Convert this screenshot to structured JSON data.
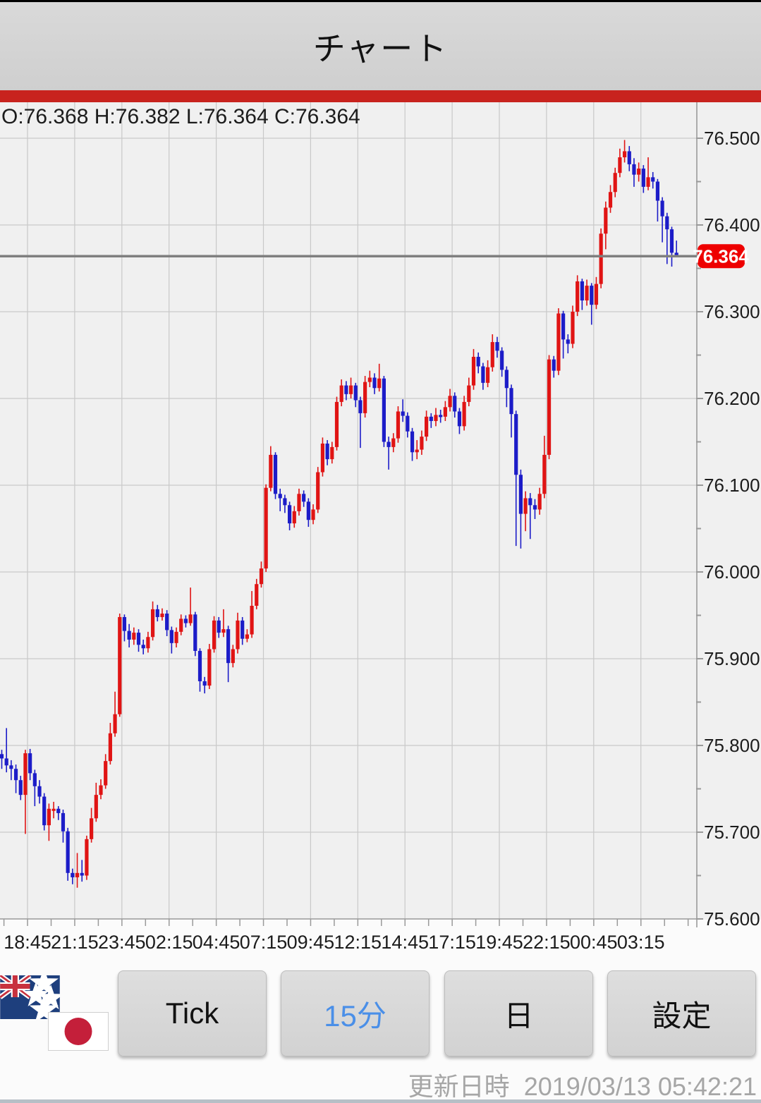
{
  "header": {
    "title": "チャート",
    "accent_color": "#c8231e"
  },
  "price_readout": {
    "display": "O:76.368 H:76.382 L:76.364 C:76.364",
    "open": "76.368",
    "high": "76.382",
    "low": "76.364",
    "close": "76.364"
  },
  "chart_data": {
    "type": "candlestick",
    "timeframe_minutes": 15,
    "current_price": "76.364",
    "y_axis": {
      "min": 75.6,
      "max": 76.5,
      "tick_interval": 0.1,
      "labels": [
        "76.500",
        "76.400",
        "76.300",
        "76.200",
        "76.100",
        "76.000",
        "75.900",
        "75.800",
        "75.700",
        "75.600"
      ]
    },
    "x_axis": {
      "labels": [
        "18:45",
        "21:15",
        "23:45",
        "02:15",
        "04:45",
        "07:15",
        "09:45",
        "12:15",
        "14:45",
        "17:15",
        "19:45",
        "22:15",
        "00:45",
        "03:15"
      ]
    },
    "colors": {
      "up": "#e01414",
      "down": "#1c1cc8",
      "grid": "#c9c9c9",
      "axis": "#9a9a9a",
      "plot_bg": "#f0f0f0",
      "below_axis_bg": "#fbfbfb",
      "current_price_line": "#7f7f7f",
      "price_flag_bg": "#ee0000",
      "price_flag_text": "#ffffff",
      "label_text": "#1c1c1c"
    },
    "candles": [
      [
        75.79,
        75.795,
        75.773,
        75.785
      ],
      [
        75.785,
        75.82,
        75.769,
        75.777
      ],
      [
        75.777,
        75.783,
        75.76,
        75.773
      ],
      [
        75.773,
        75.778,
        75.745,
        75.76
      ],
      [
        75.76,
        75.765,
        75.737,
        75.743
      ],
      [
        75.743,
        75.795,
        75.698,
        75.791
      ],
      [
        75.791,
        75.796,
        75.76,
        75.768
      ],
      [
        75.768,
        75.772,
        75.73,
        75.753
      ],
      [
        75.753,
        75.76,
        75.733,
        75.741
      ],
      [
        75.741,
        75.745,
        75.702,
        75.708
      ],
      [
        75.708,
        75.733,
        75.69,
        75.727
      ],
      [
        75.727,
        75.735,
        75.716,
        75.727
      ],
      [
        75.727,
        75.73,
        75.714,
        75.722
      ],
      [
        75.722,
        75.726,
        75.688,
        75.701
      ],
      [
        75.701,
        75.705,
        75.644,
        75.653
      ],
      [
        75.653,
        75.658,
        75.64,
        75.648
      ],
      [
        75.648,
        75.676,
        75.636,
        75.653
      ],
      [
        75.653,
        75.668,
        75.643,
        75.65
      ],
      [
        75.65,
        75.696,
        75.645,
        75.692
      ],
      [
        75.692,
        75.728,
        75.688,
        75.716
      ],
      [
        75.716,
        75.757,
        75.712,
        75.743
      ],
      [
        75.743,
        75.761,
        75.738,
        75.754
      ],
      [
        75.754,
        75.79,
        75.75,
        75.782
      ],
      [
        75.782,
        75.826,
        75.778,
        75.814
      ],
      [
        75.814,
        75.862,
        75.81,
        75.836
      ],
      [
        75.836,
        75.952,
        75.833,
        75.948
      ],
      [
        75.948,
        75.951,
        75.92,
        75.932
      ],
      [
        75.932,
        75.94,
        75.913,
        75.922
      ],
      [
        75.922,
        75.936,
        75.916,
        75.93
      ],
      [
        75.93,
        75.934,
        75.908,
        75.916
      ],
      [
        75.916,
        75.922,
        75.905,
        75.912
      ],
      [
        75.912,
        75.931,
        75.907,
        75.925
      ],
      [
        75.925,
        75.966,
        75.921,
        75.957
      ],
      [
        75.957,
        75.962,
        75.943,
        75.948
      ],
      [
        75.948,
        75.958,
        75.944,
        75.952
      ],
      [
        75.952,
        75.956,
        75.926,
        75.933
      ],
      [
        75.933,
        75.937,
        75.906,
        75.918
      ],
      [
        75.918,
        75.936,
        75.913,
        75.931
      ],
      [
        75.931,
        75.951,
        75.927,
        75.946
      ],
      [
        75.946,
        75.95,
        75.936,
        75.941
      ],
      [
        75.941,
        75.982,
        75.938,
        75.951
      ],
      [
        75.951,
        75.954,
        75.903,
        75.909
      ],
      [
        75.909,
        75.912,
        75.862,
        75.874
      ],
      [
        75.874,
        75.879,
        75.86,
        75.869
      ],
      [
        75.869,
        75.917,
        75.865,
        75.911
      ],
      [
        75.911,
        75.949,
        75.907,
        75.944
      ],
      [
        75.944,
        75.948,
        75.924,
        75.93
      ],
      [
        75.93,
        75.957,
        75.925,
        75.934
      ],
      [
        75.934,
        75.938,
        75.873,
        75.895
      ],
      [
        75.895,
        75.916,
        75.89,
        75.911
      ],
      [
        75.911,
        75.953,
        75.906,
        75.944
      ],
      [
        75.944,
        75.948,
        75.916,
        75.923
      ],
      [
        75.923,
        75.934,
        75.919,
        75.928
      ],
      [
        75.928,
        75.978,
        75.924,
        75.961
      ],
      [
        75.961,
        75.992,
        75.957,
        75.986
      ],
      [
        75.986,
        76.012,
        75.982,
        76.004
      ],
      [
        76.004,
        76.101,
        76.0,
        76.097
      ],
      [
        76.097,
        76.145,
        76.093,
        76.135
      ],
      [
        76.135,
        76.138,
        76.084,
        76.09
      ],
      [
        76.09,
        76.096,
        76.07,
        76.085
      ],
      [
        76.085,
        76.089,
        76.068,
        76.077
      ],
      [
        76.077,
        76.081,
        76.048,
        76.056
      ],
      [
        76.056,
        76.076,
        76.051,
        76.07
      ],
      [
        76.07,
        76.096,
        76.065,
        76.09
      ],
      [
        76.09,
        76.094,
        76.075,
        76.081
      ],
      [
        76.081,
        76.085,
        76.052,
        76.06
      ],
      [
        76.06,
        76.078,
        76.055,
        76.072
      ],
      [
        76.072,
        76.121,
        76.068,
        76.115
      ],
      [
        76.115,
        76.155,
        76.11,
        76.148
      ],
      [
        76.148,
        76.152,
        76.123,
        76.13
      ],
      [
        76.13,
        76.15,
        76.125,
        76.144
      ],
      [
        76.144,
        76.202,
        76.14,
        76.196
      ],
      [
        76.196,
        76.222,
        76.191,
        76.215
      ],
      [
        76.215,
        76.22,
        76.198,
        76.205
      ],
      [
        76.205,
        76.224,
        76.2,
        76.215
      ],
      [
        76.215,
        76.218,
        76.19,
        76.198
      ],
      [
        76.198,
        76.202,
        76.143,
        76.183
      ],
      [
        76.183,
        76.226,
        76.178,
        76.219
      ],
      [
        76.219,
        76.232,
        76.213,
        76.224
      ],
      [
        76.224,
        76.229,
        76.205,
        76.212
      ],
      [
        76.212,
        76.24,
        76.208,
        76.223
      ],
      [
        76.223,
        76.226,
        76.144,
        76.15
      ],
      [
        76.15,
        76.156,
        76.118,
        76.144
      ],
      [
        76.144,
        76.16,
        76.138,
        76.154
      ],
      [
        76.154,
        76.191,
        76.149,
        76.185
      ],
      [
        76.185,
        76.199,
        76.173,
        76.18
      ],
      [
        76.18,
        76.184,
        76.155,
        76.162
      ],
      [
        76.162,
        76.166,
        76.128,
        76.138
      ],
      [
        76.138,
        76.152,
        76.13,
        76.141
      ],
      [
        76.141,
        76.163,
        76.135,
        76.156
      ],
      [
        76.156,
        76.186,
        76.151,
        76.179
      ],
      [
        76.179,
        76.183,
        76.166,
        76.174
      ],
      [
        76.174,
        76.189,
        76.168,
        76.181
      ],
      [
        76.181,
        76.187,
        76.172,
        76.179
      ],
      [
        76.179,
        76.197,
        76.174,
        76.19
      ],
      [
        76.19,
        76.211,
        76.185,
        76.203
      ],
      [
        76.203,
        76.207,
        76.178,
        76.185
      ],
      [
        76.185,
        76.189,
        76.159,
        76.168
      ],
      [
        76.168,
        76.203,
        76.163,
        76.196
      ],
      [
        76.196,
        76.224,
        76.191,
        76.215
      ],
      [
        76.215,
        76.257,
        76.21,
        76.248
      ],
      [
        76.248,
        76.253,
        76.229,
        76.237
      ],
      [
        76.237,
        76.241,
        76.21,
        76.218
      ],
      [
        76.218,
        76.244,
        76.213,
        76.236
      ],
      [
        76.236,
        76.274,
        76.231,
        76.265
      ],
      [
        76.265,
        76.271,
        76.247,
        76.255
      ],
      [
        76.255,
        76.259,
        76.225,
        76.233
      ],
      [
        76.233,
        76.237,
        76.19,
        76.212
      ],
      [
        76.212,
        76.216,
        76.155,
        76.182
      ],
      [
        76.182,
        76.186,
        76.03,
        76.112
      ],
      [
        76.112,
        76.118,
        76.027,
        76.067
      ],
      [
        76.067,
        76.093,
        76.047,
        76.085
      ],
      [
        76.085,
        76.091,
        76.038,
        76.077
      ],
      [
        76.077,
        76.084,
        76.061,
        76.072
      ],
      [
        76.072,
        76.097,
        76.066,
        76.09
      ],
      [
        76.09,
        76.157,
        76.085,
        76.135
      ],
      [
        76.135,
        76.25,
        76.13,
        76.245
      ],
      [
        76.245,
        76.249,
        76.224,
        76.232
      ],
      [
        76.232,
        76.304,
        76.227,
        76.298
      ],
      [
        76.298,
        76.301,
        76.246,
        76.268
      ],
      [
        76.268,
        76.274,
        76.252,
        76.263
      ],
      [
        76.263,
        76.307,
        76.258,
        76.3
      ],
      [
        76.3,
        76.342,
        76.295,
        76.335
      ],
      [
        76.335,
        76.338,
        76.302,
        76.313
      ],
      [
        76.313,
        76.337,
        76.307,
        76.33
      ],
      [
        76.33,
        76.333,
        76.285,
        76.308
      ],
      [
        76.308,
        76.34,
        76.303,
        76.332
      ],
      [
        76.332,
        76.396,
        76.327,
        76.39
      ],
      [
        76.39,
        76.427,
        76.372,
        76.42
      ],
      [
        76.42,
        76.446,
        76.414,
        76.438
      ],
      [
        76.438,
        76.466,
        76.432,
        76.46
      ],
      [
        76.46,
        76.488,
        76.455,
        76.478
      ],
      [
        76.478,
        76.498,
        76.472,
        76.485
      ],
      [
        76.485,
        76.491,
        76.462,
        76.47
      ],
      [
        76.47,
        76.477,
        76.444,
        76.458
      ],
      [
        76.458,
        76.472,
        76.45,
        76.465
      ],
      [
        76.465,
        76.469,
        76.437,
        76.444
      ],
      [
        76.444,
        76.478,
        76.44,
        76.455
      ],
      [
        76.455,
        76.461,
        76.442,
        76.45
      ],
      [
        76.45,
        76.453,
        76.404,
        76.428
      ],
      [
        76.428,
        76.432,
        76.38,
        76.41
      ],
      [
        76.41,
        76.414,
        76.355,
        76.395
      ],
      [
        76.395,
        76.398,
        76.352,
        76.368
      ],
      [
        76.368,
        76.382,
        76.364,
        76.364
      ]
    ]
  },
  "pair_indicator": {
    "base_flag": "new-zealand",
    "quote_flag": "japan"
  },
  "toolbar": {
    "active_color": "#4a8fe8",
    "buttons": [
      {
        "label": "Tick",
        "active": false
      },
      {
        "label": "15分",
        "active": true
      },
      {
        "label": "日",
        "active": false
      },
      {
        "label": "設定",
        "active": false
      }
    ]
  },
  "footer": {
    "updated_label": "更新日時",
    "updated_datetime": "2019/03/13 05:42:21"
  }
}
